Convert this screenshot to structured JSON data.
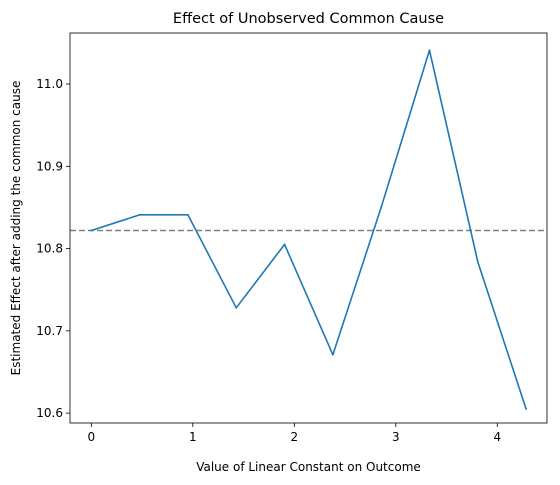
{
  "chart_data": {
    "type": "line",
    "title": "Effect of Unobserved Common Cause",
    "xlabel": "Value of Linear Constant on Outcome",
    "ylabel": "Estimated Effect after adding the common cause",
    "xlim": [
      -0.21,
      4.49
    ],
    "ylim": [
      10.588,
      11.062
    ],
    "xticks": [
      "0",
      "1",
      "2",
      "3",
      "4"
    ],
    "yticks": [
      "10.6",
      "10.7",
      "10.8",
      "10.9",
      "11.0"
    ],
    "grid": false,
    "series": [
      {
        "x": [
          0.0,
          0.476,
          0.952,
          1.428,
          1.904,
          2.38,
          2.856,
          3.332,
          3.808,
          4.284
        ],
        "values": [
          10.822,
          10.841,
          10.841,
          10.728,
          10.805,
          10.671,
          10.85,
          11.041,
          10.784,
          10.605
        ],
        "color": "#1f77b4"
      }
    ],
    "reference_line": {
      "orientation": "horizontal",
      "value": 10.822,
      "style": "dashed",
      "color": "#808080"
    }
  }
}
